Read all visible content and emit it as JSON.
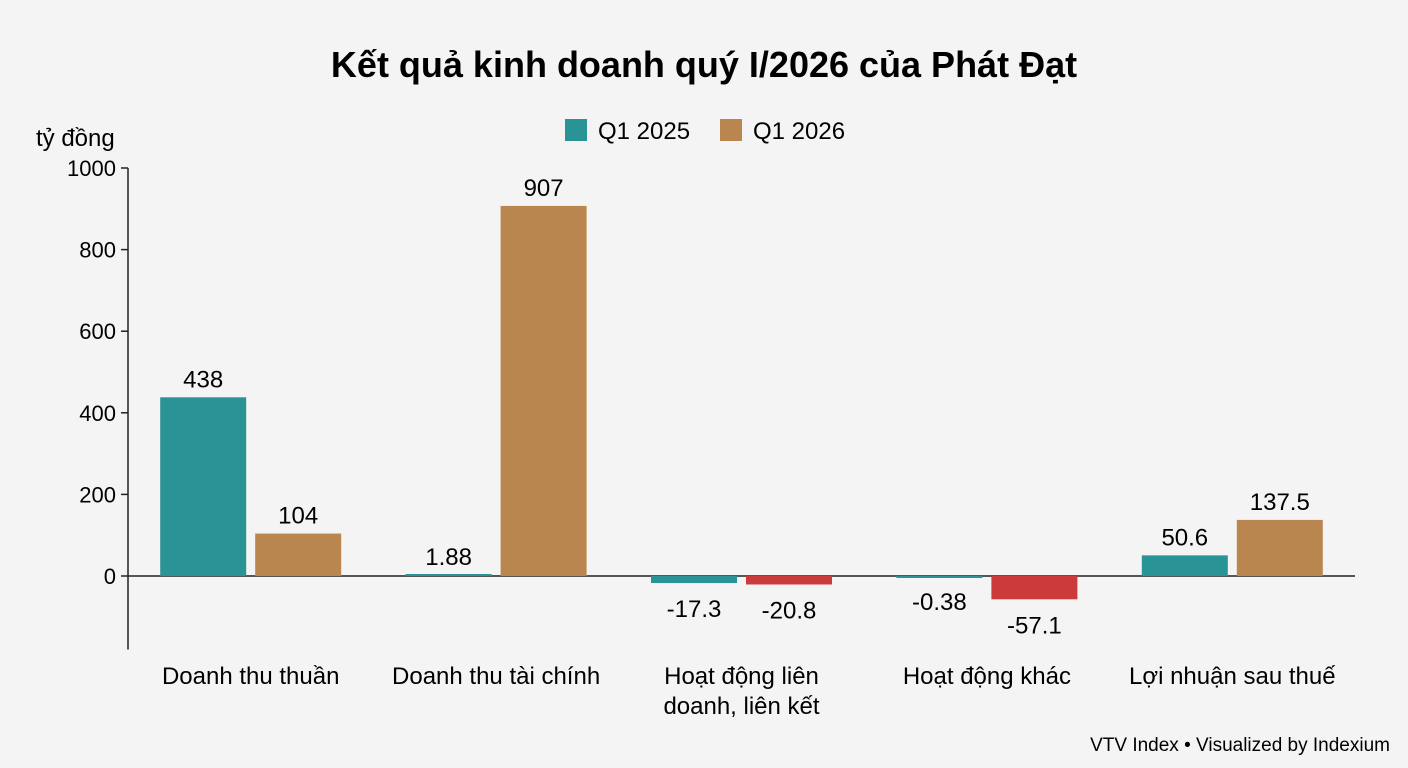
{
  "chart_data": {
    "type": "bar",
    "title": "Kết quả kinh doanh quý I/2026 của Phát Đạt",
    "ylabel": "tỷ đồng",
    "xlabel": "",
    "ylim": [
      -180,
      1000
    ],
    "yticks": [
      0,
      200,
      400,
      600,
      800,
      1000
    ],
    "grid": false,
    "legend_position": "top-center",
    "categories": [
      [
        "Doanh thu thuần"
      ],
      [
        "Doanh thu tài chính"
      ],
      [
        "Hoạt động liên",
        "doanh, liên kết"
      ],
      [
        "Hoạt động khác"
      ],
      [
        "Lợi nhuận sau thuế"
      ]
    ],
    "series": [
      {
        "name": "Q1 2025",
        "color": "#2a9396",
        "values": [
          438,
          1.88,
          -17.3,
          -0.38,
          50.6
        ],
        "labels": [
          "438",
          "1.88",
          "-17.3",
          "-0.38",
          "50.6"
        ]
      },
      {
        "name": "Q1 2026",
        "color": "#b8864e",
        "values": [
          104,
          907,
          -20.8,
          -57.1,
          137.5
        ],
        "labels": [
          "104",
          "907",
          "-20.8",
          "-57.1",
          "137.5"
        ]
      }
    ],
    "negative_color": "#cc3b3b",
    "source": "VTV Index • Visualized by Indexium"
  }
}
